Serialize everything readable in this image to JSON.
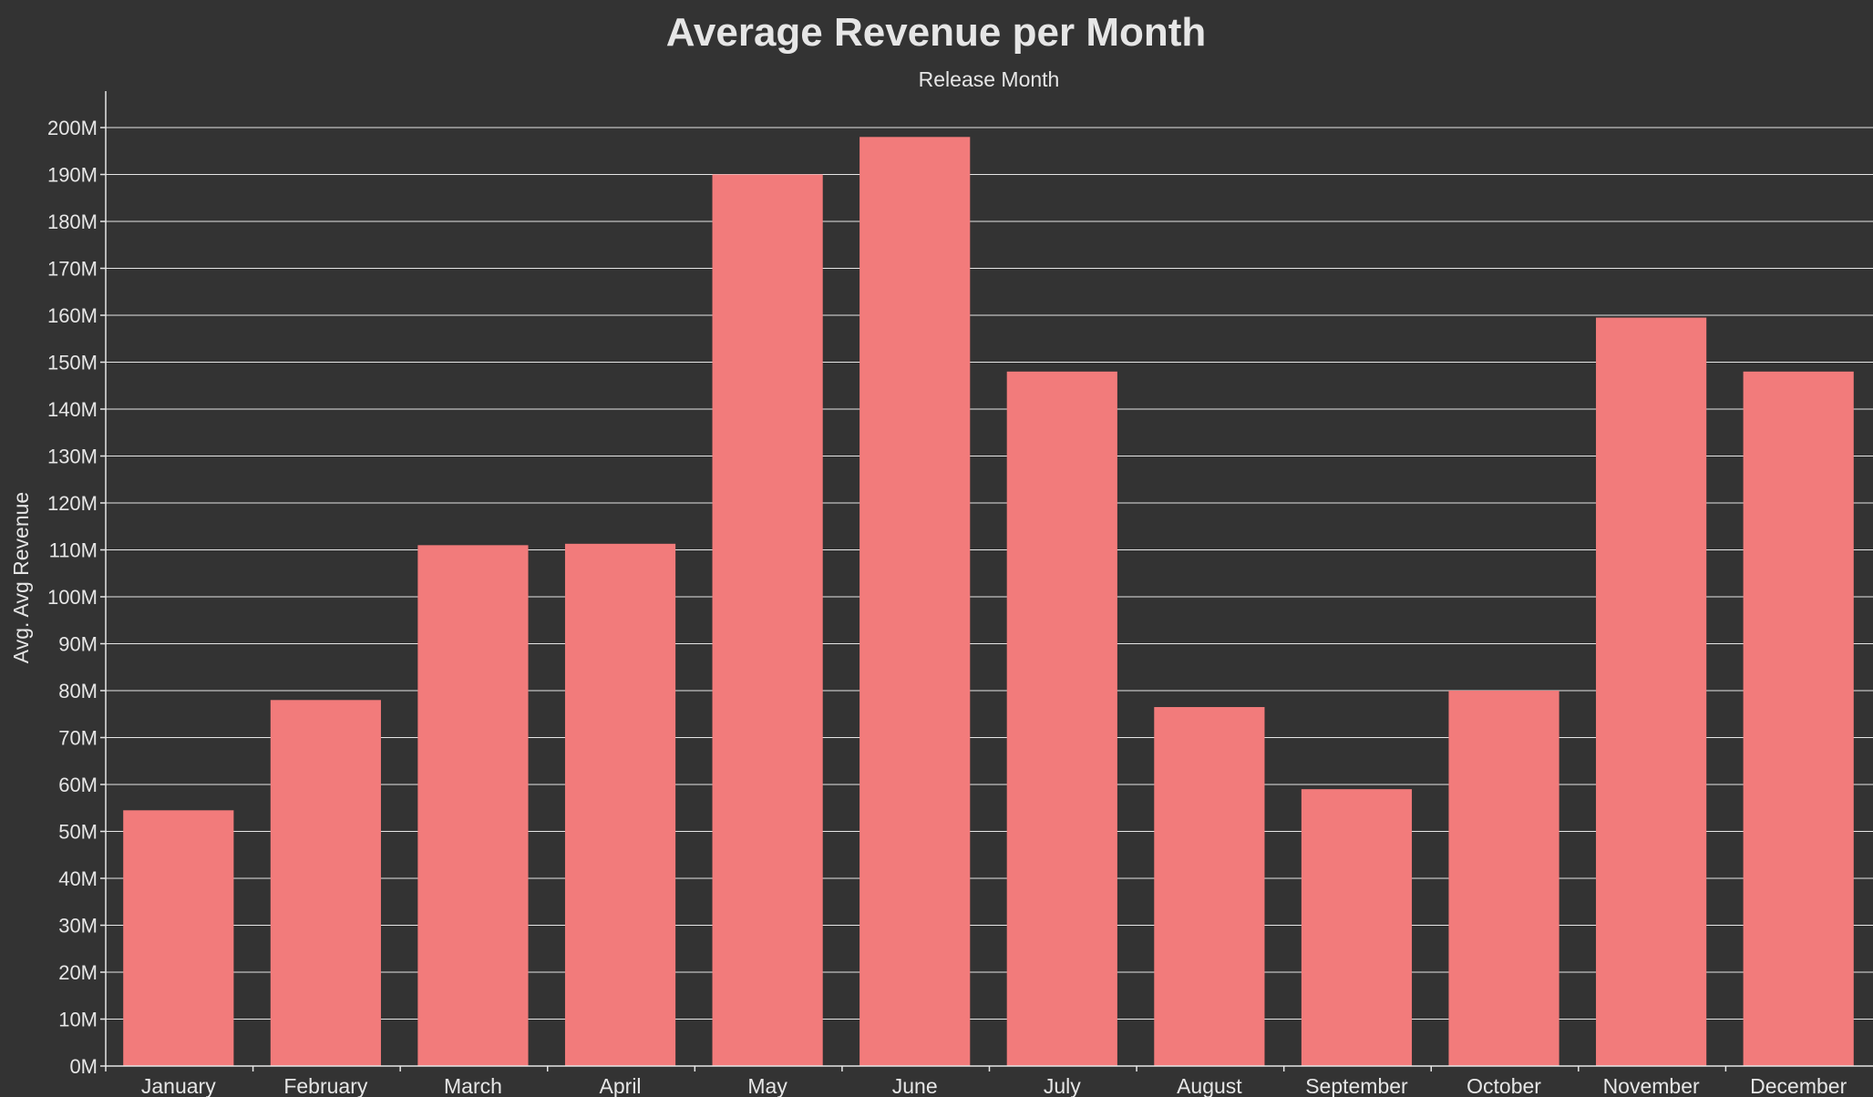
{
  "colors": {
    "background": "#333333",
    "bar": "#f27b7b",
    "grid": "#e6e6e6",
    "text": "#e6e6e6"
  },
  "chart_data": {
    "type": "bar",
    "title": "Average Revenue per Month",
    "subtitle": "Release Month",
    "xlabel": "",
    "ylabel": "Avg. Avg Revenue",
    "categories": [
      "January",
      "February",
      "March",
      "April",
      "May",
      "June",
      "July",
      "August",
      "September",
      "October",
      "November",
      "December"
    ],
    "values": [
      54500000,
      78000000,
      111000000,
      111300000,
      190000000,
      198000000,
      148000000,
      76500000,
      59000000,
      80000000,
      159500000,
      148000000
    ],
    "ylim": [
      0,
      200000000
    ],
    "yticks": [
      0,
      10000000,
      20000000,
      30000000,
      40000000,
      50000000,
      60000000,
      70000000,
      80000000,
      90000000,
      100000000,
      110000000,
      120000000,
      130000000,
      140000000,
      150000000,
      160000000,
      170000000,
      180000000,
      190000000,
      200000000
    ],
    "ytick_labels": [
      "0M",
      "10M",
      "20M",
      "30M",
      "40M",
      "50M",
      "60M",
      "70M",
      "80M",
      "90M",
      "100M",
      "110M",
      "120M",
      "130M",
      "140M",
      "150M",
      "160M",
      "170M",
      "180M",
      "190M",
      "200M"
    ],
    "grid": true,
    "legend": "none"
  }
}
